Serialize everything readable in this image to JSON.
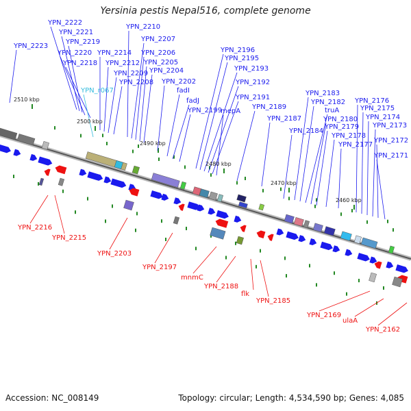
{
  "title": "Yersinia pestis Nepal516, complete genome",
  "footer": {
    "accession": "Accession: NC_008149",
    "topology": "Topology: circular; Length: 4,534,590 bp; Genes: 4,085"
  },
  "colors": {
    "forward": "#1a1aee",
    "reverse": "#ee1111",
    "rna": "#33bbdd",
    "tick": "#228822",
    "backbone": "#999999"
  },
  "kbp_ticks": [
    "2510 kbp",
    "2500 kbp",
    "2490 kbp",
    "2480 kbp",
    "2470 kbp",
    "2460 kbp"
  ],
  "top_labels": [
    {
      "text": "YPN_2222",
      "kind": "forward"
    },
    {
      "text": "YPN_2221",
      "kind": "forward"
    },
    {
      "text": "YPN_2219",
      "kind": "forward"
    },
    {
      "text": "YPN_2223",
      "kind": "forward"
    },
    {
      "text": "YPN_2220",
      "kind": "forward"
    },
    {
      "text": "YPN_2218",
      "kind": "forward"
    },
    {
      "text": "YPN_2214",
      "kind": "forward"
    },
    {
      "text": "YPN_2212",
      "kind": "forward"
    },
    {
      "text": "YPN_2209",
      "kind": "forward"
    },
    {
      "text": "YPN_2208",
      "kind": "forward"
    },
    {
      "text": "YPN_r067",
      "kind": "rna"
    },
    {
      "text": "YPN_2210",
      "kind": "forward"
    },
    {
      "text": "YPN_2207",
      "kind": "forward"
    },
    {
      "text": "YPN_2206",
      "kind": "forward"
    },
    {
      "text": "YPN_2205",
      "kind": "forward"
    },
    {
      "text": "YPN_2204",
      "kind": "forward"
    },
    {
      "text": "YPN_2202",
      "kind": "forward"
    },
    {
      "text": "fadI",
      "kind": "forward"
    },
    {
      "text": "fadJ",
      "kind": "forward"
    },
    {
      "text": "YPN_2199",
      "kind": "forward"
    },
    {
      "text": "YPN_2196",
      "kind": "forward"
    },
    {
      "text": "YPN_2195",
      "kind": "forward"
    },
    {
      "text": "YPN_2193",
      "kind": "forward"
    },
    {
      "text": "YPN_2192",
      "kind": "forward"
    },
    {
      "text": "YPN_2191",
      "kind": "forward"
    },
    {
      "text": "mepA",
      "kind": "forward"
    },
    {
      "text": "YPN_2189",
      "kind": "forward"
    },
    {
      "text": "YPN_2187",
      "kind": "forward"
    },
    {
      "text": "YPN_2184",
      "kind": "forward"
    },
    {
      "text": "YPN_2183",
      "kind": "forward"
    },
    {
      "text": "YPN_2182",
      "kind": "forward"
    },
    {
      "text": "truA",
      "kind": "forward"
    },
    {
      "text": "YPN_2180",
      "kind": "forward"
    },
    {
      "text": "YPN_2179",
      "kind": "forward"
    },
    {
      "text": "YPN_2178",
      "kind": "forward"
    },
    {
      "text": "YPN_2177",
      "kind": "forward"
    },
    {
      "text": "YPN_2176",
      "kind": "forward"
    },
    {
      "text": "YPN_2175",
      "kind": "forward"
    },
    {
      "text": "YPN_2174",
      "kind": "forward"
    },
    {
      "text": "YPN_2173",
      "kind": "forward"
    },
    {
      "text": "YPN_2172",
      "kind": "forward"
    },
    {
      "text": "YPN_2171",
      "kind": "forward"
    }
  ],
  "bottom_labels": [
    {
      "text": "YPN_2216",
      "kind": "reverse"
    },
    {
      "text": "YPN_2215",
      "kind": "reverse"
    },
    {
      "text": "YPN_2203",
      "kind": "reverse"
    },
    {
      "text": "YPN_2197",
      "kind": "reverse"
    },
    {
      "text": "mnmC",
      "kind": "reverse"
    },
    {
      "text": "YPN_2188",
      "kind": "reverse"
    },
    {
      "text": "flk",
      "kind": "reverse"
    },
    {
      "text": "YPN_2185",
      "kind": "reverse"
    },
    {
      "text": "YPN_2169",
      "kind": "reverse"
    },
    {
      "text": "ulaA",
      "kind": "reverse"
    },
    {
      "text": "YPN_2162",
      "kind": "reverse"
    }
  ]
}
